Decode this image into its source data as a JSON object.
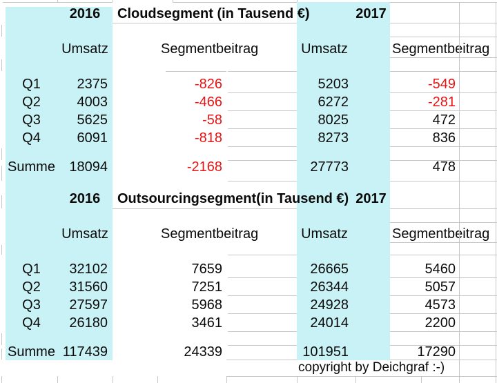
{
  "colors": {
    "highlight": "#c8f2f5",
    "negative_value": "#e81414",
    "gridline": "#c6c6c6",
    "text": "#0a0a0a"
  },
  "copyright": "copyright by Deichgraf :-)",
  "sections": [
    {
      "year_left": "2016",
      "title": "Cloudsegment (in Tausend €)",
      "year_right": "2017",
      "headers": {
        "umsatz_2016": "Umsatz",
        "segment_2016": "Segmentbeitrag",
        "umsatz_2017": "Umsatz",
        "segment_2017": "Segmentbeitrag"
      },
      "rows": [
        {
          "label": "Q1",
          "u16": "2375",
          "s16": "-826",
          "u17": "5203",
          "s17": "-549"
        },
        {
          "label": "Q2",
          "u16": "4003",
          "s16": "-466",
          "u17": "6272",
          "s17": "-281"
        },
        {
          "label": "Q3",
          "u16": "5625",
          "s16": "-58",
          "u17": "8025",
          "s17": "472"
        },
        {
          "label": "Q4",
          "u16": "6091",
          "s16": "-818",
          "u17": "8273",
          "s17": "836"
        }
      ],
      "summe": {
        "label": "Summe",
        "u16": "18094",
        "s16": "-2168",
        "u17": "27773",
        "s17": "478"
      }
    },
    {
      "year_left": "2016",
      "title": "Outsourcingsegment(in Tausend €)",
      "year_right": "2017",
      "headers": {
        "umsatz_2016": "Umsatz",
        "segment_2016": "Segmentbeitrag",
        "umsatz_2017": "Umsatz",
        "segment_2017": "Segmentbeitrag"
      },
      "rows": [
        {
          "label": "Q1",
          "u16": "32102",
          "s16": "7659",
          "u17": "26665",
          "s17": "5460"
        },
        {
          "label": "Q2",
          "u16": "31560",
          "s16": "7251",
          "u17": "26344",
          "s17": "5057"
        },
        {
          "label": "Q3",
          "u16": "27597",
          "s16": "5968",
          "u17": "24928",
          "s17": "4573"
        },
        {
          "label": "Q4",
          "u16": "26180",
          "s16": "3461",
          "u17": "24014",
          "s17": "2200"
        }
      ],
      "summe": {
        "label": "Summe",
        "u16": "117439",
        "s16": "24339",
        "u17": "101951",
        "s17": "17290"
      }
    }
  ]
}
